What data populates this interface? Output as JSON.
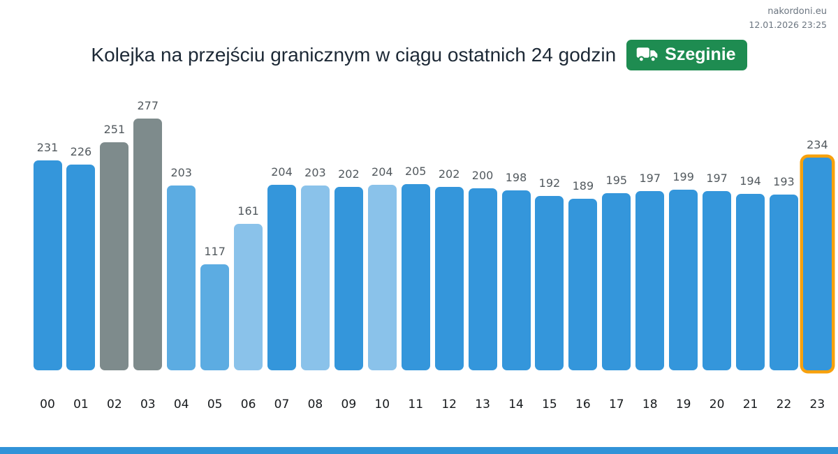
{
  "header": {
    "site": "nakordoni.eu",
    "datetime": "12.01.2026 23:25"
  },
  "title": "Kolejka na przejściu granicznym w ciągu ostatnich 24 godzin",
  "badge": {
    "label": "Szeginie",
    "icon": "truck-icon"
  },
  "colors": {
    "blue": "#3496db",
    "medium": "#5cace2",
    "pale": "#8ac2ea",
    "gray": "#7e8b8c",
    "highlight_orange": "#f7a10d",
    "badge_green": "#1e8c51",
    "footer_blue": "#3193d8",
    "title_text": "#1d2936",
    "value_label_text": "#52595e",
    "axis_label_text": "#16191c",
    "header_text": "#6b7580"
  },
  "chart_data": {
    "type": "bar",
    "title": "Kolejka na przejściu granicznym w ciągu ostatnich 24 godzin",
    "xlabel": "",
    "ylabel": "",
    "ylim": [
      0,
      290
    ],
    "grid": false,
    "legend": "none",
    "categories": [
      "00",
      "01",
      "02",
      "03",
      "04",
      "05",
      "06",
      "07",
      "08",
      "09",
      "10",
      "11",
      "12",
      "13",
      "14",
      "15",
      "16",
      "17",
      "18",
      "19",
      "20",
      "21",
      "22",
      "23"
    ],
    "values": [
      231,
      226,
      251,
      277,
      203,
      117,
      161,
      204,
      203,
      202,
      204,
      205,
      202,
      200,
      198,
      192,
      189,
      195,
      197,
      199,
      197,
      194,
      193,
      234
    ],
    "bar_colors": [
      "blue",
      "blue",
      "gray",
      "gray",
      "medium",
      "medium",
      "pale",
      "blue",
      "pale",
      "blue",
      "pale",
      "blue",
      "blue",
      "blue",
      "blue",
      "blue",
      "blue",
      "blue",
      "blue",
      "blue",
      "blue",
      "blue",
      "blue",
      "blue"
    ],
    "highlight_index": 23,
    "highlight_category": "23",
    "highlight_style": "orange-outline"
  }
}
